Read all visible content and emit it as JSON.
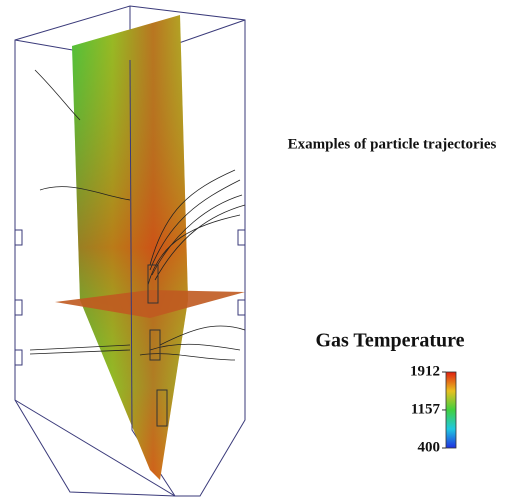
{
  "annotation": "Examples of particle trajectories",
  "colorbar": {
    "title": "Gas Temperature",
    "lim": [
      400,
      1912
    ],
    "ticks": [
      1912,
      1157,
      400
    ]
  }
}
